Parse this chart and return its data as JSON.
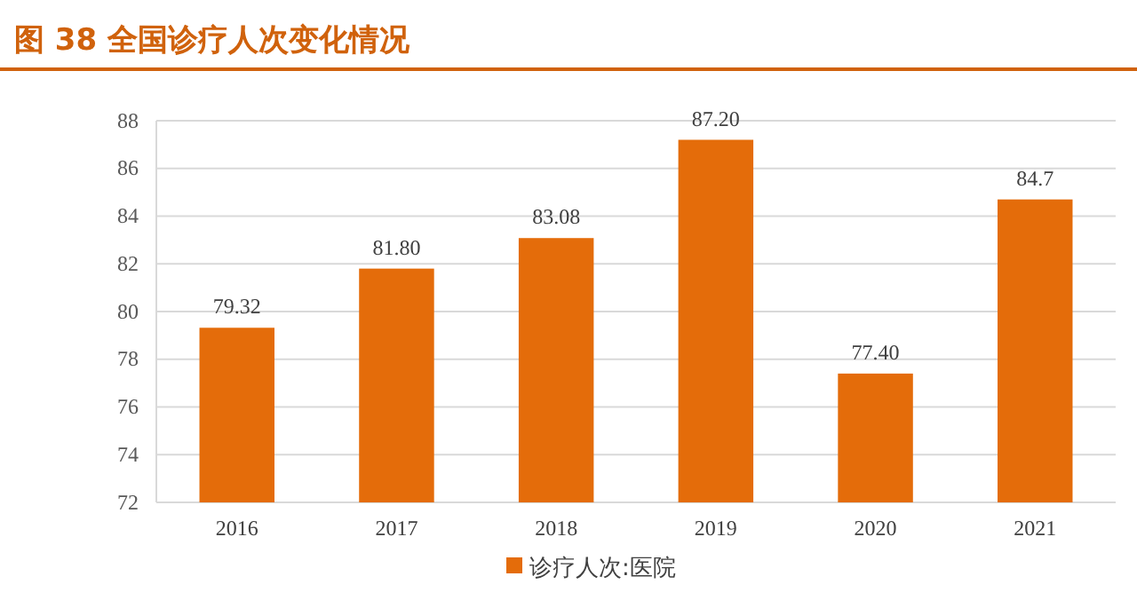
{
  "chart_data": {
    "type": "bar",
    "title": "图 38  全国诊疗人次变化情况",
    "categories": [
      "2016",
      "2017",
      "2018",
      "2019",
      "2020",
      "2021"
    ],
    "series": [
      {
        "name": "诊疗人次:医院",
        "color": "#e46c0a",
        "values": [
          79.32,
          81.8,
          83.08,
          87.2,
          77.4,
          84.7
        ]
      }
    ],
    "value_labels": [
      "79.32",
      "81.80",
      "83.08",
      "87.20",
      "77.40",
      "84.7"
    ],
    "ylim": [
      72,
      88
    ],
    "yticks": [
      72,
      74,
      76,
      78,
      80,
      82,
      84,
      86,
      88
    ],
    "grid": "y",
    "legend": "bottom"
  }
}
